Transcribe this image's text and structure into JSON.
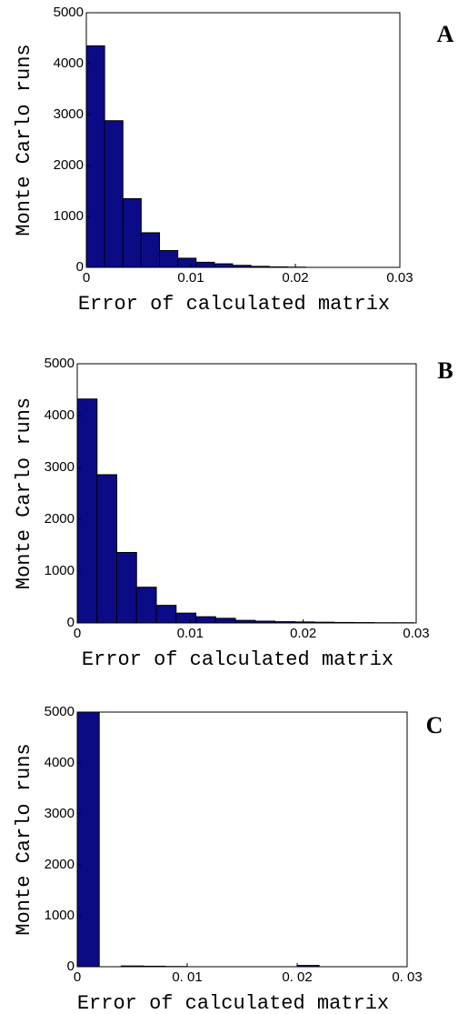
{
  "chart_data": [
    {
      "type": "histogram",
      "panel": "A",
      "xlabel": "Error of calculated matrix",
      "ylabel": "Monte Carlo runs",
      "bins": [
        0,
        0.00175,
        0.0035,
        0.00525,
        0.007,
        0.00875,
        0.0105,
        0.01225,
        0.014,
        0.01575,
        0.0175,
        0.01925,
        0.021
      ],
      "values": [
        4350,
        2880,
        1350,
        680,
        330,
        180,
        100,
        70,
        40,
        20,
        10,
        5
      ],
      "color": "#0b0b86",
      "xlim": [
        0,
        0.03
      ],
      "ylim": [
        0,
        5000
      ],
      "xticks": [
        0,
        0.01,
        0.02,
        0.03
      ],
      "yticks": [
        0,
        1000,
        2000,
        3000,
        4000,
        5000
      ]
    },
    {
      "type": "histogram",
      "panel": "B",
      "xlabel": "Error of calculated matrix",
      "ylabel": "Monte Carlo runs",
      "bins": [
        0,
        0.00175,
        0.0035,
        0.00525,
        0.007,
        0.00875,
        0.0105,
        0.01225,
        0.014,
        0.01575,
        0.0175,
        0.01925,
        0.021,
        0.02275,
        0.0245,
        0.02625,
        0.028,
        0.02975
      ],
      "values": [
        4320,
        2860,
        1360,
        690,
        340,
        190,
        120,
        90,
        50,
        35,
        25,
        20,
        15,
        10,
        8,
        5,
        5
      ],
      "color": "#0b0b86",
      "xlim": [
        0,
        0.03
      ],
      "ylim": [
        0,
        5000
      ],
      "xticks": [
        0,
        0.01,
        0.02,
        0.03
      ],
      "yticks": [
        0,
        1000,
        2000,
        3000,
        4000,
        5000
      ]
    },
    {
      "type": "histogram",
      "panel": "C",
      "xlabel": "Error of calculated matrix",
      "ylabel": "Monte Carlo runs",
      "bins": [
        0,
        0.002,
        0.004,
        0.006,
        0.008,
        0.01,
        0.012,
        0.014,
        0.016,
        0.018,
        0.02,
        0.022,
        0.024,
        0.026,
        0.028,
        0.03
      ],
      "values": [
        5000,
        0,
        15,
        10,
        5,
        0,
        0,
        0,
        0,
        0,
        25,
        0,
        0,
        0,
        0
      ],
      "color": "#0b0b86",
      "xlim": [
        0,
        0.03
      ],
      "ylim": [
        0,
        5000
      ],
      "xticks": [
        0,
        {
          "value": 0.01,
          "label": "0. 01"
        },
        {
          "value": 0.02,
          "label": "0. 02"
        },
        {
          "value": 0.03,
          "label": "0. 03"
        }
      ],
      "yticks": [
        0,
        1000,
        2000,
        3000,
        4000,
        5000
      ]
    }
  ]
}
